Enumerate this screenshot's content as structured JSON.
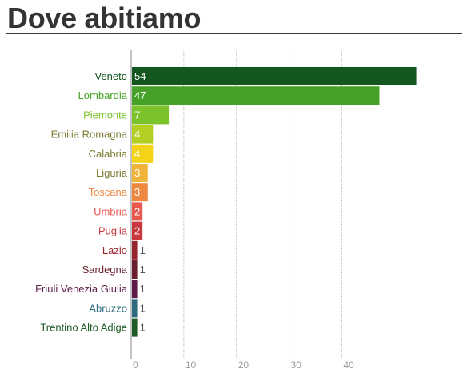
{
  "page": {
    "title": "Dove abitiamo"
  },
  "chart_data": {
    "type": "bar",
    "orientation": "horizontal",
    "title": "Dove abitiamo",
    "xlabel": "",
    "ylabel": "",
    "xlim": [
      0,
      55
    ],
    "xticks": [
      0,
      10,
      20,
      30,
      40
    ],
    "grid": "vertical dotted",
    "legend": "none",
    "categories": [
      "Veneto",
      "Lombardia",
      "Piemonte",
      "Emilia Romagna",
      "Calabria",
      "Liguria",
      "Toscana",
      "Umbria",
      "Puglia",
      "Lazio",
      "Sardegna",
      "Friuli Venezia Giulia",
      "Abruzzo",
      "Trentino Alto Adige"
    ],
    "values": [
      54,
      47,
      7,
      4,
      4,
      3,
      3,
      2,
      2,
      1,
      1,
      1,
      1,
      1
    ],
    "colors": [
      "#14561f",
      "#45a127",
      "#7cc22a",
      "#b3cf23",
      "#f3d416",
      "#f1b43b",
      "#ee8840",
      "#e9584f",
      "#c8383e",
      "#98242c",
      "#6b1f2c",
      "#5c1e48",
      "#2e6a7f",
      "#1d5a24"
    ]
  }
}
